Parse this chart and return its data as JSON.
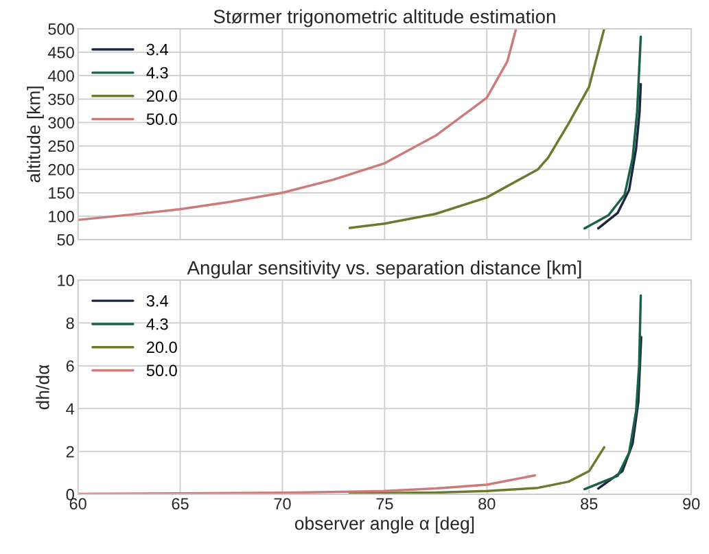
{
  "chart_data": [
    {
      "type": "line",
      "title": "Størmer trigonometric altitude estimation",
      "ylabel": "altitude [km]",
      "xlim": [
        60,
        90
      ],
      "xticks": [
        60,
        65,
        70,
        75,
        80,
        85,
        90
      ],
      "ylim": [
        50,
        500
      ],
      "yticks": [
        50,
        100,
        150,
        200,
        250,
        300,
        350,
        400,
        450,
        500
      ],
      "tick_labels": "y",
      "grid": true,
      "legend": "top left",
      "line_style": "solid",
      "marker": "none",
      "series": [
        {
          "name": "3.4",
          "color": "#1d2645",
          "x": [
            85.45,
            86.4,
            86.96,
            87.3,
            87.47,
            87.53
          ],
          "values": [
            74,
            107,
            156,
            244,
            322,
            382
          ]
        },
        {
          "name": "4.3",
          "color": "#1b6149",
          "x": [
            84.78,
            85.95,
            86.74,
            87.13,
            87.35,
            87.53
          ],
          "values": [
            74,
            102,
            146,
            224,
            322,
            483
          ]
        },
        {
          "name": "20.0",
          "color": "#6b7a2f",
          "x": [
            73.29,
            75,
            77.5,
            80,
            82.5,
            83,
            84,
            85,
            85.74
          ],
          "values": [
            75,
            84,
            105,
            140,
            200,
            225,
            298,
            376,
            500
          ]
        },
        {
          "name": "50.0",
          "color": "#cc7b7b",
          "x": [
            60,
            62.5,
            65,
            67.5,
            70,
            72.5,
            75,
            77.5,
            80,
            81,
            81.43
          ],
          "values": [
            92,
            103,
            115,
            131,
            150,
            178,
            213,
            272,
            353,
            430,
            500
          ]
        }
      ]
    },
    {
      "type": "line",
      "title": "Angular sensitivity vs. separation distance [km]",
      "xlabel": "observer angle α [deg]",
      "ylabel": "dh/dα",
      "xlim": [
        60,
        90
      ],
      "xticks": [
        60,
        65,
        70,
        75,
        80,
        85,
        90
      ],
      "ylim": [
        0,
        10
      ],
      "yticks": [
        0,
        2,
        4,
        6,
        8,
        10
      ],
      "grid": true,
      "legend": "top left",
      "line_style": "solid",
      "marker": "none",
      "series": [
        {
          "name": "3.4",
          "color": "#1d2645",
          "x": [
            85.45,
            86.63,
            87.13,
            87.41,
            87.55
          ],
          "values": [
            0.27,
            1.08,
            2.37,
            4.31,
            7.34
          ]
        },
        {
          "name": "4.3",
          "color": "#1b6149",
          "x": [
            84.78,
            86.4,
            86.96,
            87.3,
            87.45,
            87.53
          ],
          "values": [
            0.24,
            0.86,
            1.94,
            3.88,
            6.04,
            9.28
          ]
        },
        {
          "name": "20.0",
          "color": "#6b7a2f",
          "x": [
            73.29,
            77.5,
            80,
            82.5,
            84,
            85,
            85.74
          ],
          "values": [
            0.04,
            0.08,
            0.15,
            0.3,
            0.59,
            1.08,
            2.19
          ]
        },
        {
          "name": "50.0",
          "color": "#cc7b7b",
          "x": [
            60,
            65,
            70,
            75,
            77.5,
            80,
            82.35
          ],
          "values": [
            0.02,
            0.04,
            0.07,
            0.15,
            0.27,
            0.45,
            0.88
          ]
        }
      ]
    }
  ]
}
